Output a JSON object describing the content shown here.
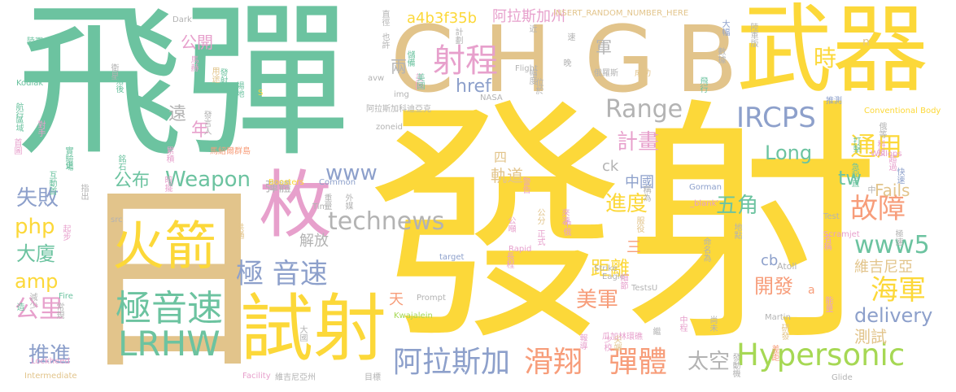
{
  "palette": {
    "green": "#6cc3a0",
    "yellow": "#fcd839",
    "tan": "#e2c48b",
    "pink": "#e7a0cc",
    "blue": "#8da0cb",
    "gray": "#b3b3b3",
    "orange": "#f79d7a",
    "lime": "#a6d854"
  },
  "words": [
    "飛彈",
    "發射",
    "日",
    "武器",
    "C",
    "H",
    "G",
    "B",
    "枚",
    "試射",
    "火箭",
    "極音速",
    "LRHW",
    "射程",
    "Range",
    "IRCPS",
    "Hypersonic",
    "阿拉斯加",
    "滑翔",
    "彈體",
    "極 音速",
    "technews",
    "故障",
    "海軍",
    "www5",
    "delivery",
    "時",
    "通用",
    "Long",
    "tw",
    "計畫",
    "進度",
    "距離",
    "開發",
    "美軍",
    "太空",
    "五角",
    "Weapon",
    "www",
    "失敗",
    "php",
    "大廈",
    "amp",
    "公里",
    "推進",
    "公布",
    "年",
    "遠",
    "公開",
    "兩",
    "href",
    "軍",
    "a4b3f35b",
    "阿拉斯加州",
    "測試",
    "Fails",
    "維吉尼亞",
    "中國",
    "軌道",
    "三",
    "解放",
    "彈體",
    "cb",
    "天",
    "ck",
    "四",
    "INSERT_RANDOM_NUMBER_HERE",
    "Dark",
    "Flight",
    "Kodiak",
    "Lockheed",
    "Martin",
    "Atoll",
    "Wallops",
    "Kwajalein",
    "Prompt",
    "Strike",
    "Eagle",
    "TestsU",
    "Gorman",
    "_blank'",
    "Test",
    "Scramjet",
    "Glide",
    "Facility",
    "Intermediate",
    "Conventional Body",
    "NASA",
    "Boosters",
    "Common",
    "Tim",
    "Rapid",
    "target",
    "zoneid",
    "avw",
    "img",
    "src",
    "Fire",
    "S",
    "a",
    "n",
    "馬紹爾群島",
    "維吉尼亞州",
    "瓜加林環礁",
    "阿拉斯加科迪亞克",
    "推測",
    "陸軍",
    "成功",
    "俄羅斯",
    "目標"
  ],
  "vertical_words": [
    "直徑",
    "也許",
    "計劃",
    "陸軍版",
    "大幅",
    "數據",
    "飛行",
    "衛星",
    "落後",
    "馬赫",
    "用途",
    "發射場",
    "場地",
    "發言人",
    "航行",
    "區域",
    "對手",
    "首圖",
    "實驗場",
    "史",
    "互動首",
    "指出",
    "起步",
    "銘石",
    "暗擺",
    "累積",
    "共通",
    "減少",
    "常規",
    "造",
    "大國",
    "重量",
    "外媒",
    "差距",
    "發動機",
    "中程",
    "尚未",
    "尖端",
    "少校",
    "來源",
    "中俄",
    "正式",
    "公分",
    "公噸",
    "長程",
    "警告",
    "稱為",
    "服役",
    "地點",
    "名稱",
    "命名為",
    "能量",
    "儲備",
    "美國",
    "幅度",
    "位於",
    "晚",
    "速",
    "近",
    "研發",
    "報導",
    "打擊",
    "科技",
    "超過",
    "急起直",
    "俄等",
    "快速",
    "極速",
    "中",
    "細節",
    "繼",
    "美國"
  ]
}
